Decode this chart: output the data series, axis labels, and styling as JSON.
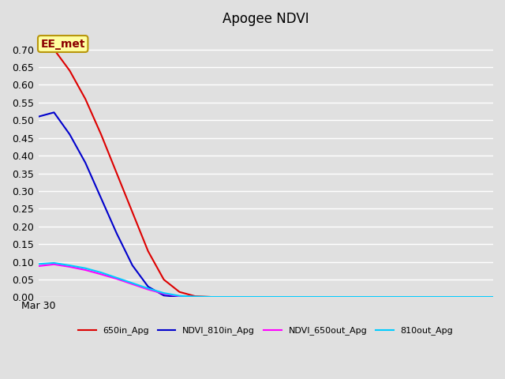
{
  "title": "Apogee NDVI",
  "background_color": "#e0e0e0",
  "plot_bg_color": "#e0e0e0",
  "ylim": [
    0.0,
    0.75
  ],
  "yticks": [
    0.0,
    0.05,
    0.1,
    0.15,
    0.2,
    0.25,
    0.3,
    0.35,
    0.4,
    0.45,
    0.5,
    0.55,
    0.6,
    0.65,
    0.7
  ],
  "xlabel": "Mar 30",
  "annotation_text": "EE_met",
  "annotation_color": "#8b0000",
  "annotation_bg": "#ffffa0",
  "annotation_border": "#b8960c",
  "series": [
    {
      "label": "650in_Apg",
      "color": "#dd0000",
      "x": [
        0,
        1,
        2,
        3,
        4,
        5,
        6,
        7,
        8,
        9,
        10,
        11,
        12,
        13,
        14,
        15,
        16,
        17,
        18,
        19,
        20,
        21,
        22,
        23,
        24,
        25,
        26,
        27,
        28,
        29
      ],
      "y": [
        0.695,
        0.7,
        0.64,
        0.56,
        0.46,
        0.35,
        0.24,
        0.13,
        0.05,
        0.015,
        0.003,
        0.001,
        0.0,
        0.0,
        0.0,
        0.0,
        0.0,
        0.0,
        0.0,
        0.0,
        0.0,
        0.0,
        0.0,
        0.0,
        0.0,
        0.0,
        0.0,
        0.0,
        0.0,
        0.0
      ]
    },
    {
      "label": "NDVI_810in_Apg",
      "color": "#0000cc",
      "x": [
        0,
        1,
        2,
        3,
        4,
        5,
        6,
        7,
        8,
        9,
        10,
        11,
        12,
        13,
        14,
        15,
        16,
        17,
        18,
        19,
        20,
        21,
        22,
        23,
        24,
        25,
        26,
        27,
        28,
        29
      ],
      "y": [
        0.51,
        0.522,
        0.46,
        0.38,
        0.28,
        0.18,
        0.09,
        0.03,
        0.005,
        0.001,
        0.0,
        0.0,
        0.0,
        0.0,
        0.0,
        0.0,
        0.0,
        0.0,
        0.0,
        0.0,
        0.0,
        0.0,
        0.0,
        0.0,
        0.0,
        0.0,
        0.0,
        0.0,
        0.0,
        0.0
      ]
    },
    {
      "label": "NDVI_650out_Apg",
      "color": "#ff00ff",
      "x": [
        0,
        1,
        2,
        3,
        4,
        5,
        6,
        7,
        8,
        9,
        10,
        11,
        12,
        13,
        14,
        15,
        16,
        17,
        18,
        19,
        20,
        21,
        22,
        23,
        24,
        25,
        26,
        27,
        28,
        29
      ],
      "y": [
        0.088,
        0.093,
        0.086,
        0.077,
        0.065,
        0.052,
        0.037,
        0.022,
        0.01,
        0.003,
        0.001,
        0.0,
        0.0,
        0.0,
        0.0,
        0.0,
        0.0,
        0.0,
        0.0,
        0.0,
        0.0,
        0.0,
        0.0,
        0.0,
        0.0,
        0.0,
        0.0,
        0.0,
        0.0,
        0.0
      ]
    },
    {
      "label": "810out_Apg",
      "color": "#00ccff",
      "x": [
        0,
        1,
        2,
        3,
        4,
        5,
        6,
        7,
        8,
        9,
        10,
        11,
        12,
        13,
        14,
        15,
        16,
        17,
        18,
        19,
        20,
        21,
        22,
        23,
        24,
        25,
        26,
        27,
        28,
        29
      ],
      "y": [
        0.094,
        0.097,
        0.09,
        0.082,
        0.07,
        0.055,
        0.04,
        0.025,
        0.012,
        0.004,
        0.002,
        0.001,
        0.001,
        0.001,
        0.001,
        0.001,
        0.001,
        0.001,
        0.001,
        0.001,
        0.001,
        0.001,
        0.001,
        0.001,
        0.001,
        0.001,
        0.001,
        0.001,
        0.001,
        0.001
      ]
    }
  ],
  "legend_labels": [
    "650in_Apg",
    "NDVI_810in_Apg",
    "NDVI_650out_Apg",
    "810out_Apg"
  ],
  "legend_colors": [
    "#dd0000",
    "#0000cc",
    "#ff00ff",
    "#00ccff"
  ]
}
